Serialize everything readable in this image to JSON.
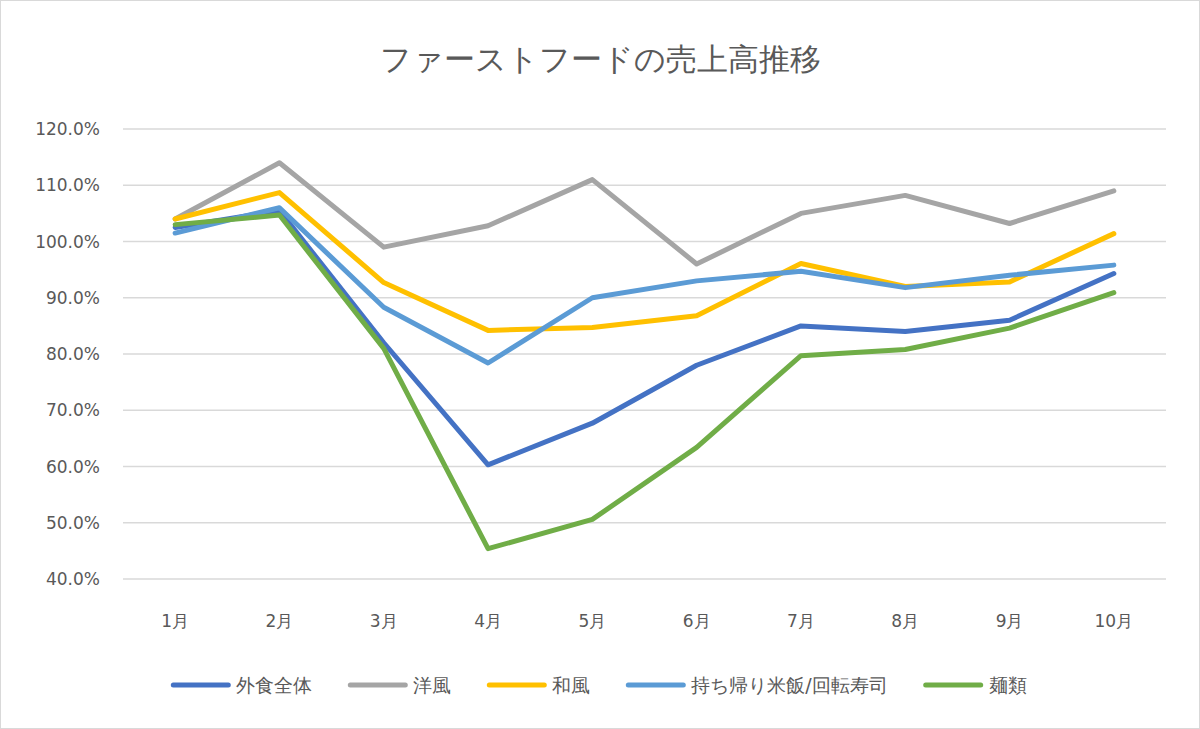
{
  "chart_data": {
    "type": "line",
    "title": "ファーストフードの売上高推移",
    "categories": [
      "1月",
      "2月",
      "3月",
      "4月",
      "5月",
      "6月",
      "7月",
      "8月",
      "9月",
      "10月"
    ],
    "series": [
      {
        "name": "外食全体",
        "color": "#4472c4",
        "values": [
          102.5,
          105.5,
          82,
          60.3,
          67.7,
          78,
          85,
          84,
          86,
          94.3
        ]
      },
      {
        "name": "洋風",
        "color": "#a5a5a5",
        "values": [
          104,
          114,
          99,
          102.8,
          111,
          96,
          105,
          108.2,
          103.2,
          109
        ]
      },
      {
        "name": "和風",
        "color": "#ffc000",
        "values": [
          104,
          108.7,
          92.7,
          84.2,
          84.7,
          86.8,
          96.1,
          92,
          92.8,
          101.4
        ]
      },
      {
        "name": "持ち帰り米飯/回転寿司",
        "color": "#5b9bd5",
        "values": [
          101.5,
          106,
          88.3,
          78.4,
          90,
          93,
          94.7,
          91.8,
          94,
          95.8
        ]
      },
      {
        "name": "麺類",
        "color": "#70ad47",
        "values": [
          103,
          104.7,
          81,
          45.4,
          50.6,
          63.4,
          79.7,
          80.8,
          84.6,
          90.9
        ]
      }
    ],
    "ylim": [
      40,
      120
    ],
    "yticks": [
      {
        "value": 40,
        "label": "40.0%"
      },
      {
        "value": 50,
        "label": "50.0%"
      },
      {
        "value": 60,
        "label": "60.0%"
      },
      {
        "value": 70,
        "label": "70.0%"
      },
      {
        "value": 80,
        "label": "80.0%"
      },
      {
        "value": 90,
        "label": "90.0%"
      },
      {
        "value": 100,
        "label": "100.0%"
      },
      {
        "value": 110,
        "label": "110.0%"
      },
      {
        "value": 120,
        "label": "120.0%"
      }
    ],
    "grid": true,
    "legend": "bottom"
  }
}
